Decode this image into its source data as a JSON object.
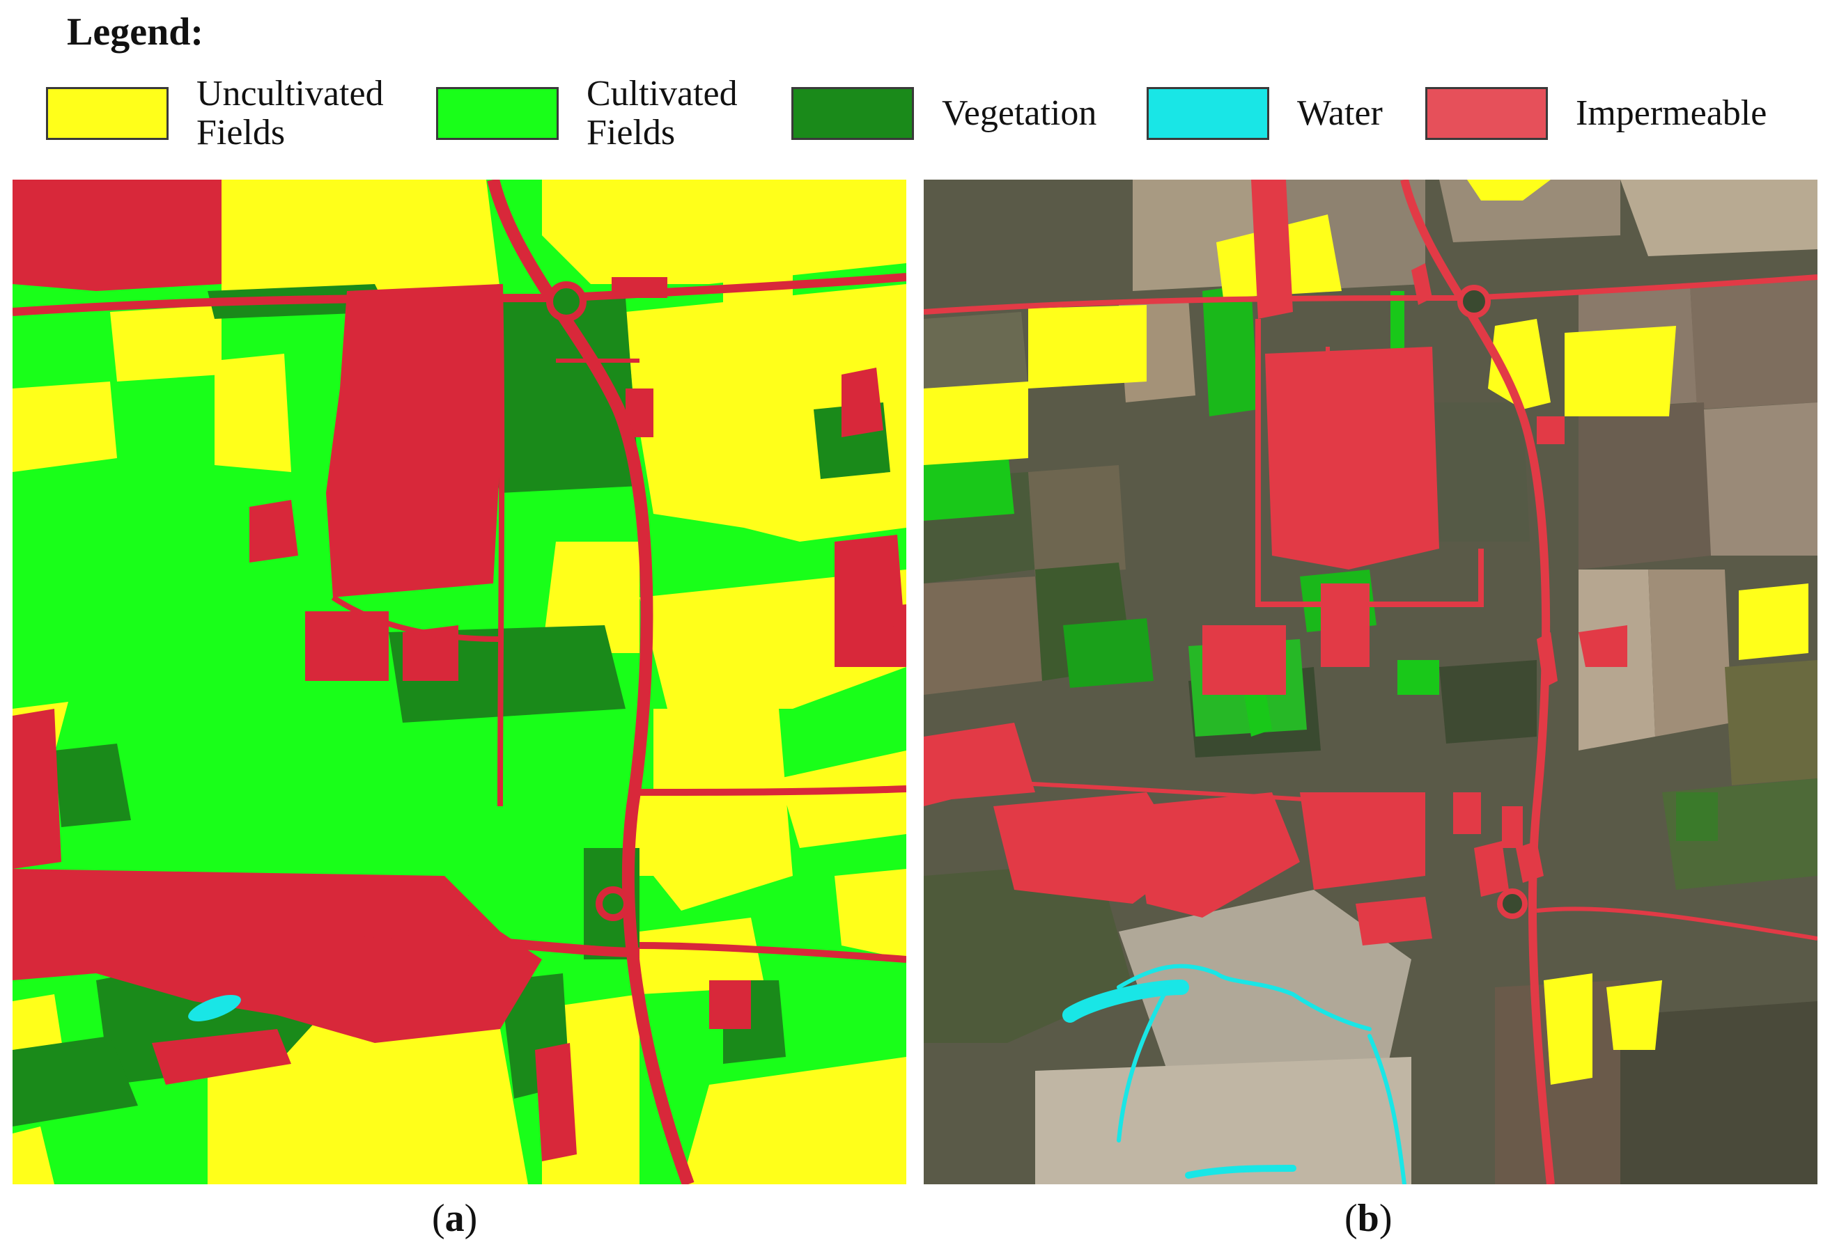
{
  "legend": {
    "title": "Legend:",
    "items": [
      {
        "label": "Uncultivated\nFields",
        "color": "#ffff1a"
      },
      {
        "label": "Cultivated\nFields",
        "color": "#19ff19"
      },
      {
        "label": "Vegetation",
        "color": "#1a8a1a"
      },
      {
        "label": "Water",
        "color": "#19e6e6"
      },
      {
        "label": "Impermeable",
        "color": "#e6505a"
      }
    ]
  },
  "panels": [
    {
      "caption_open": "(",
      "caption_letter": "a",
      "caption_close": ")"
    },
    {
      "caption_open": "(",
      "caption_letter": "b",
      "caption_close": ")"
    }
  ],
  "colors": {
    "uncultivated": "#ffff1a",
    "cultivated": "#19ff19",
    "vegetation": "#1a8a1a",
    "water": "#19e6e6",
    "impermeable": "#d8283a",
    "satellite_base": "#5a5a48"
  }
}
